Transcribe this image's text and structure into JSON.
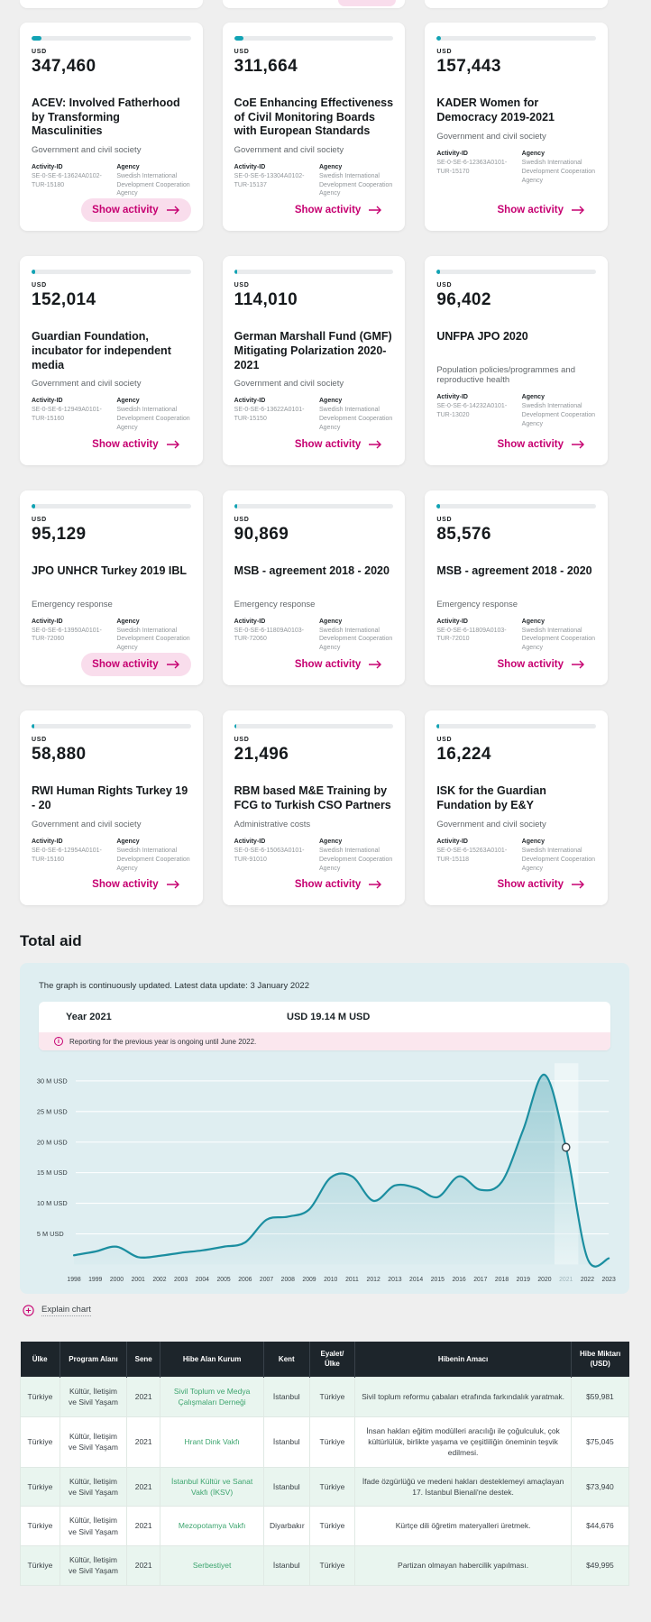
{
  "colors": {
    "accent_pink": "#c60071",
    "progress_teal": "#12a3b4",
    "chart_line_teal": "#1b8ea0",
    "chart_panel_bg": "#dfeef1",
    "table_header_bg": "#1d252b",
    "table_alt_row_bg": "#e9f5ef",
    "org_link_green": "#3da56f",
    "notice_pink_bg": "#fbe7ee"
  },
  "cards_section": {
    "labels": {
      "currency": "USD",
      "activity_id": "Activity-ID",
      "agency": "Agency",
      "show_activity": "Show activity"
    },
    "agency_name": "Swedish International Development Cooperation Agency",
    "cards": [
      {
        "amount": "347,460",
        "title": "ACEV: Involved Fatherhood by Transforming Masculinities",
        "sector": "Government and civil society",
        "activity_id": "SE-0-SE-6-13624A0102-TUR-15180",
        "progress_pct": 6,
        "hovered": true
      },
      {
        "amount": "311,664",
        "title": "CoE Enhancing Effectiveness of Civil Monitoring Boards with European Standards",
        "sector": "Government and civil society",
        "activity_id": "SE-0-SE-6-13304A0102-TUR-15137",
        "progress_pct": 6,
        "hovered": false
      },
      {
        "amount": "157,443",
        "title": "KADER Women for Democracy 2019-2021",
        "sector": "Government and civil society",
        "activity_id": "SE-0-SE-6-12363A0101-TUR-15170",
        "progress_pct": 2.5,
        "hovered": false
      },
      {
        "amount": "152,014",
        "title": "Guardian Foundation, incubator for independent media",
        "sector": "Government and civil society",
        "activity_id": "SE-0-SE-6-12949A0101-TUR-15160",
        "progress_pct": 2,
        "hovered": false
      },
      {
        "amount": "114,010",
        "title": "German Marshall Fund (GMF) Mitigating Polarization 2020-2021",
        "sector": "Government and civil society",
        "activity_id": "SE-0-SE-6-13622A0101-TUR-15150",
        "progress_pct": 2,
        "hovered": false
      },
      {
        "amount": "96,402",
        "title": "UNFPA JPO 2020",
        "sector": "Population policies/programmes and reproductive health",
        "activity_id": "SE-0-SE-6-14232A0101-TUR-13020",
        "progress_pct": 2,
        "hovered": false
      },
      {
        "amount": "95,129",
        "title": "JPO UNHCR Turkey 2019 IBL",
        "sector": "Emergency response",
        "activity_id": "SE-0-SE-6-13950A0101-TUR-72060",
        "progress_pct": 2,
        "hovered": true
      },
      {
        "amount": "90,869",
        "title": "MSB - agreement 2018 - 2020",
        "sector": "Emergency response",
        "activity_id": "SE-0-SE-6-11809A0103-TUR-72060",
        "progress_pct": 2,
        "hovered": false
      },
      {
        "amount": "85,576",
        "title": "MSB - agreement 2018 - 2020",
        "sector": "Emergency response",
        "activity_id": "SE-0-SE-6-11809A0103-TUR-72010",
        "progress_pct": 2,
        "hovered": false
      },
      {
        "amount": "58,880",
        "title": "RWI Human Rights Turkey 19 - 20",
        "sector": "Government and civil society",
        "activity_id": "SE-0-SE-6-12954A0101-TUR-15160",
        "progress_pct": 1.5,
        "hovered": false
      },
      {
        "amount": "21,496",
        "title": "RBM based M&E Training by FCG to Turkish CSO Partners",
        "sector": "Administrative costs",
        "activity_id": "SE-0-SE-6-15063A0101-TUR-91010",
        "progress_pct": 1.5,
        "hovered": false
      },
      {
        "amount": "16,224",
        "title": "ISK for the Guardian Fundation by E&Y",
        "sector": "Government and civil society",
        "activity_id": "SE-0-SE-6-15263A0101-TUR-15118",
        "progress_pct": 1.5,
        "hovered": false
      }
    ]
  },
  "total_aid": {
    "heading": "Total aid",
    "update_note": "The graph is continuously updated. Latest data update: 3 January 2022",
    "tooltip": {
      "year_label": "Year 2021",
      "value": "USD 19.14 M USD",
      "note": "Reporting for the previous year is ongoing until June 2022."
    },
    "explain_label": "Explain chart"
  },
  "chart_data": {
    "type": "area",
    "title": "Total aid",
    "x": [
      1998,
      1999,
      2000,
      2001,
      2002,
      2003,
      2004,
      2005,
      2006,
      2007,
      2008,
      2009,
      2010,
      2011,
      2012,
      2013,
      2014,
      2015,
      2016,
      2017,
      2018,
      2019,
      2020,
      2021,
      2022,
      2023
    ],
    "values": [
      1.5,
      2.1,
      2.9,
      1.2,
      1.4,
      1.9,
      2.3,
      2.9,
      3.6,
      7.3,
      7.8,
      9.0,
      14.2,
      14.4,
      10.4,
      12.9,
      12.5,
      11.0,
      14.4,
      12.2,
      13.5,
      22.0,
      31.0,
      19.14,
      1.0,
      1.0
    ],
    "unit": "M USD",
    "ytick_values": [
      5,
      10,
      15,
      20,
      25,
      30
    ],
    "ytick_labels": [
      "5 M USD",
      "10 M USD",
      "15 M USD",
      "20 M USD",
      "25 M USD",
      "30 M USD"
    ],
    "ylim": [
      0,
      32
    ],
    "grid": true,
    "legend": "none",
    "marker": {
      "year": 2021,
      "value": 19.14
    },
    "highlight_year": 2021
  },
  "table": {
    "headers": [
      "Ülke",
      "Program Alanı",
      "Sene",
      "Hibe Alan Kurum",
      "Kent",
      "Eyalet/ Ülke",
      "Hibenin Amacı",
      "Hibe Miktarı (USD)"
    ],
    "rows": [
      {
        "ulke": "Türkiye",
        "program": "Kültür, İletişim ve Sivil Yaşam",
        "sene": "2021",
        "kurum": "Sivil Toplum ve Medya Çalışmaları Derneği",
        "kent": "İstanbul",
        "eyalet": "Türkiye",
        "amac": "Sivil toplum reformu çabaları etrafında farkındalık yaratmak.",
        "miktar": "$59,981"
      },
      {
        "ulke": "Türkiye",
        "program": "Kültür, İletişim ve Sivil Yaşam",
        "sene": "2021",
        "kurum": "Hrant Dink Vakfı",
        "kent": "İstanbul",
        "eyalet": "Türkiye",
        "amac": "İnsan hakları eğitim modülleri aracılığı ile çoğulculuk, çok kültürlülük, birlikte yaşama ve çeşitliliğin öneminin teşvik edilmesi.",
        "miktar": "$75,045"
      },
      {
        "ulke": "Türkiye",
        "program": "Kültür, İletişim ve Sivil Yaşam",
        "sene": "2021",
        "kurum": "İstanbul Kültür ve Sanat Vakfı (İKSV)",
        "kent": "İstanbul",
        "eyalet": "Türkiye",
        "amac": "İfade özgürlüğü ve medeni hakları desteklemeyi amaçlayan 17. İstanbul Bienali'ne destek.",
        "miktar": "$73,940"
      },
      {
        "ulke": "Türkiye",
        "program": "Kültür, İletişim ve Sivil Yaşam",
        "sene": "2021",
        "kurum": "Mezopotamya Vakfı",
        "kent": "Diyarbakır",
        "eyalet": "Türkiye",
        "amac": "Kürtçe dili öğretim materyalleri üretmek.",
        "miktar": "$44,676"
      },
      {
        "ulke": "Türkiye",
        "program": "Kültür, İletişim ve Sivil Yaşam",
        "sene": "2021",
        "kurum": "Serbestiyet",
        "kent": "İstanbul",
        "eyalet": "Türkiye",
        "amac": "Partizan olmayan habercilik yapılması.",
        "miktar": "$49,995"
      }
    ]
  }
}
